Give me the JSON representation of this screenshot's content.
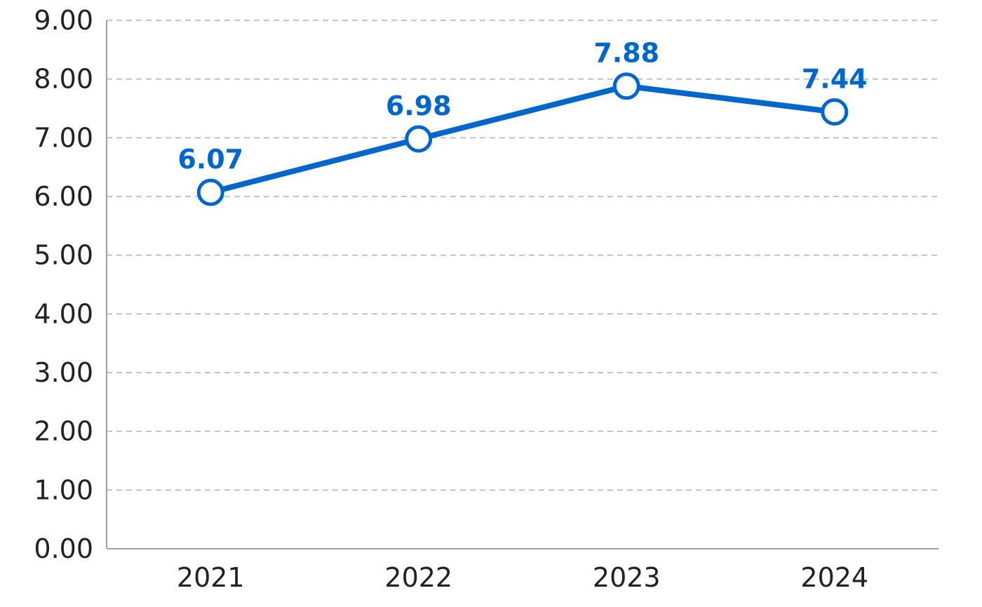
{
  "chart_data": {
    "type": "line",
    "title": "",
    "xlabel": "",
    "ylabel": "",
    "categories": [
      "2021",
      "2022",
      "2023",
      "2024"
    ],
    "series": [
      {
        "name": "",
        "values": [
          6.07,
          6.98,
          7.88,
          7.44
        ],
        "labels": [
          "6.07",
          "6.98",
          "7.88",
          "7.44"
        ]
      }
    ],
    "ylim": [
      0,
      9
    ],
    "yticks": [
      "0.00",
      "1.00",
      "2.00",
      "3.00",
      "4.00",
      "5.00",
      "6.00",
      "7.00",
      "8.00",
      "9.00"
    ],
    "grid": true,
    "legend": "none",
    "colors": {
      "line": "#0066CC",
      "grid": "#B0B0B0",
      "axis": "#A0A0A0"
    }
  }
}
